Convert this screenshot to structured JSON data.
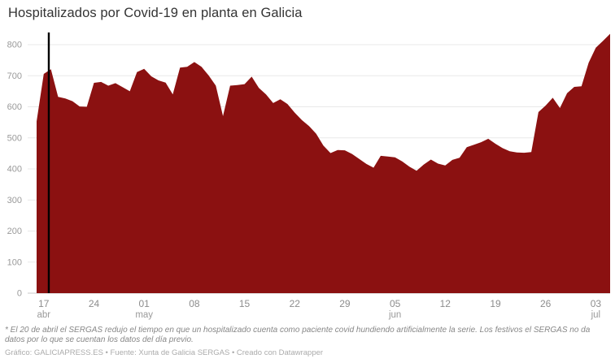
{
  "title": "Hospitalizados por Covid-19 en planta en Galicia",
  "footnote": "* El 20 de abril el SERGAS redujo el tiempo en que un hospitalizado cuenta como paciente covid hundiendo artificialmente la serie. Los festivos el SERGAS no da datos por lo que se cuentan los datos del día previo.",
  "credit": "Gráfico: GALICIAPRESS.ES • Fuente: Xunta de Galicia SERGAS • Creado con Datawrapper",
  "colors": {
    "area": "#8b1111",
    "annotation_line": "#000000",
    "grid": "#e9e9e9",
    "baseline": "#c9c9c9",
    "axis_text": "#9a9a9a",
    "axis_text_strong": "#8d8d8d",
    "title_text": "#333333",
    "background": "#ffffff"
  },
  "chart_data": {
    "type": "area",
    "title": "Hospitalizados por Covid-19 en planta en Galicia",
    "xlabel": "",
    "ylabel": "",
    "ylim": [
      0,
      800
    ],
    "yticks": [
      0,
      100,
      200,
      300,
      400,
      500,
      600,
      700,
      800
    ],
    "grid": "horizontal",
    "legend": "none",
    "x": [
      "16 abr",
      "17 abr",
      "18 abr",
      "19 abr",
      "20 abr",
      "21 abr",
      "22 abr",
      "23 abr",
      "24 abr",
      "25 abr",
      "26 abr",
      "27 abr",
      "28 abr",
      "29 abr",
      "30 abr",
      "01 may",
      "02 may",
      "03 may",
      "04 may",
      "05 may",
      "06 may",
      "07 may",
      "08 may",
      "09 may",
      "10 may",
      "11 may",
      "12 may",
      "13 may",
      "14 may",
      "15 may",
      "16 may",
      "17 may",
      "18 may",
      "19 may",
      "20 may",
      "21 may",
      "22 may",
      "23 may",
      "24 may",
      "25 may",
      "26 may",
      "27 may",
      "28 may",
      "29 may",
      "30 may",
      "31 may",
      "01 jun",
      "02 jun",
      "03 jun",
      "04 jun",
      "05 jun",
      "06 jun",
      "07 jun",
      "08 jun",
      "09 jun",
      "10 jun",
      "11 jun",
      "12 jun",
      "13 jun",
      "14 jun",
      "15 jun",
      "16 jun",
      "17 jun",
      "18 jun",
      "19 jun",
      "20 jun",
      "21 jun",
      "22 jun",
      "23 jun",
      "24 jun",
      "25 jun",
      "26 jun",
      "27 jun",
      "28 jun",
      "29 jun",
      "30 jun",
      "01 jul",
      "02 jul",
      "03 jul",
      "04 jul",
      "05 jul"
    ],
    "values": [
      553,
      706,
      721,
      632,
      627,
      618,
      601,
      600,
      677,
      680,
      668,
      676,
      663,
      650,
      712,
      722,
      698,
      685,
      678,
      640,
      726,
      729,
      744,
      729,
      701,
      668,
      570,
      668,
      670,
      673,
      697,
      661,
      640,
      612,
      624,
      609,
      581,
      557,
      538,
      513,
      475,
      451,
      461,
      460,
      448,
      432,
      416,
      404,
      442,
      440,
      437,
      424,
      407,
      394,
      414,
      430,
      417,
      411,
      429,
      436,
      470,
      478,
      486,
      497,
      481,
      467,
      457,
      453,
      452,
      454,
      583,
      604,
      629,
      596,
      644,
      664,
      666,
      742,
      790,
      812,
      835
    ],
    "xticks": [
      {
        "index": 1,
        "day": "17",
        "month": "abr"
      },
      {
        "index": 8,
        "day": "24",
        "month": ""
      },
      {
        "index": 15,
        "day": "01",
        "month": "may"
      },
      {
        "index": 22,
        "day": "08",
        "month": ""
      },
      {
        "index": 29,
        "day": "15",
        "month": ""
      },
      {
        "index": 36,
        "day": "22",
        "month": ""
      },
      {
        "index": 43,
        "day": "29",
        "month": ""
      },
      {
        "index": 50,
        "day": "05",
        "month": "jun"
      },
      {
        "index": 57,
        "day": "12",
        "month": ""
      },
      {
        "index": 64,
        "day": "19",
        "month": ""
      },
      {
        "index": 71,
        "day": "26",
        "month": ""
      },
      {
        "index": 78,
        "day": "03",
        "month": "jul"
      }
    ],
    "annotation_vline": {
      "index": 1.7,
      "date": "20 abr"
    }
  }
}
